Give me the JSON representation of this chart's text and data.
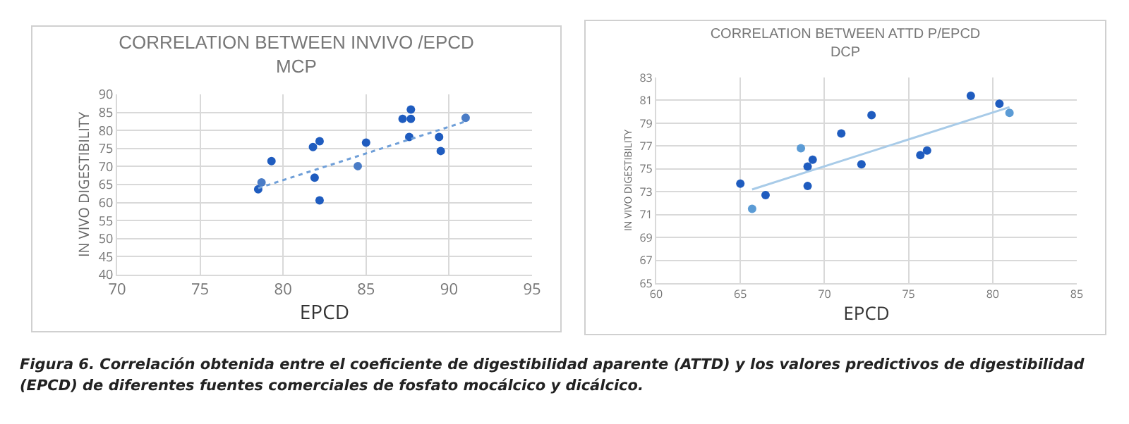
{
  "chart_data": [
    {
      "type": "scatter",
      "title": "CORRELATION BETWEEN INVIVO /EPCD",
      "subtitle": "MCP",
      "xlabel": "EPCD",
      "ylabel": "IN VIVO DIGESTIBILITY",
      "xlim": [
        70,
        95
      ],
      "xticks": [
        70,
        75,
        80,
        85,
        90,
        95
      ],
      "ylim": [
        40,
        90
      ],
      "yticks": [
        40,
        45,
        50,
        55,
        60,
        65,
        70,
        75,
        80,
        85,
        90
      ],
      "grid": true,
      "marker": "circle",
      "series": [
        {
          "color": "#1f5cbf",
          "x": [
            78.5,
            78.7,
            79.3,
            81.8,
            81.9,
            82.2,
            82.2,
            84.5,
            85.0,
            87.2,
            87.6,
            87.7,
            87.7,
            89.4,
            89.5,
            91.0
          ],
          "values": [
            63.7,
            65.6,
            71.5,
            75.4,
            66.9,
            77.0,
            60.6,
            70.1,
            76.6,
            83.2,
            78.2,
            83.2,
            85.8,
            78.2,
            74.3,
            83.5
          ],
          "colors": [
            "#1f5cbf",
            "#4a7cc6",
            "#1f5cbf",
            "#1f5cbf",
            "#1f5cbf",
            "#1f5cbf",
            "#1f5cbf",
            "#4a7cc6",
            "#1f5cbf",
            "#1f5cbf",
            "#1f5cbf",
            "#1f5cbf",
            "#1f5cbf",
            "#1f5cbf",
            "#1f5cbf",
            "#4a7cc6"
          ]
        },
        {
          "type": "line",
          "color": "#6f9fd8",
          "line_style": "dotted",
          "marker": "none",
          "x": [
            78.5,
            91.0
          ],
          "values": [
            64.0,
            82.5
          ]
        }
      ]
    },
    {
      "type": "scatter",
      "title": "CORRELATION BETWEEN ATTD P/EPCD",
      "subtitle": "DCP",
      "xlabel": "EPCD",
      "ylabel": "IN VIVO DIGESTIBILITY",
      "xlim": [
        60,
        85
      ],
      "xticks": [
        60,
        65,
        70,
        75,
        80,
        85
      ],
      "ylim": [
        65,
        83
      ],
      "yticks": [
        65,
        67,
        69,
        71,
        73,
        75,
        77,
        79,
        81,
        83
      ],
      "grid": true,
      "marker": "circle",
      "series": [
        {
          "color": "#1f5cbf",
          "x": [
            65.0,
            65.7,
            66.5,
            68.6,
            69.0,
            69.0,
            69.3,
            71.0,
            72.2,
            72.8,
            75.7,
            76.1,
            78.7,
            80.4,
            81.0
          ],
          "values": [
            73.7,
            71.5,
            72.7,
            76.8,
            75.2,
            73.5,
            75.8,
            78.1,
            75.4,
            79.7,
            76.2,
            76.6,
            81.4,
            80.7,
            79.9
          ],
          "colors": [
            "#1f5cbf",
            "#5b9bd5",
            "#1f5cbf",
            "#5b9bd5",
            "#1f5cbf",
            "#1f5cbf",
            "#1f5cbf",
            "#1f5cbf",
            "#1f5cbf",
            "#1f5cbf",
            "#1f5cbf",
            "#1f5cbf",
            "#1f5cbf",
            "#1f5cbf",
            "#5b9bd5"
          ]
        },
        {
          "type": "line",
          "color": "#a8cbe8",
          "line_style": "solid",
          "marker": "none",
          "x": [
            65.7,
            81.0
          ],
          "values": [
            73.2,
            80.4
          ]
        }
      ]
    },
    {
      "type": "other",
      "annotations": [
        "Figura 6. Correlación obtenida entre el coeficiente de digestibilidad aparente (ATTD) y los valores predictivos de digestibilidad (EPCD) de diferentes fuentes comerciales de fosfato mocálcico y dicálcico."
      ]
    }
  ]
}
